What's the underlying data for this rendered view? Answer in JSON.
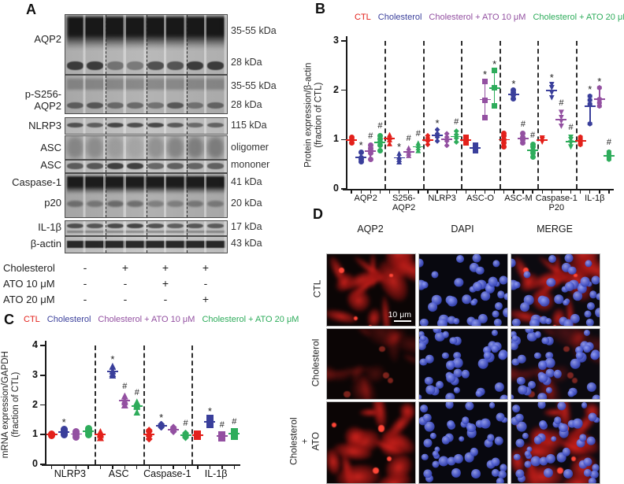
{
  "figure": {
    "panel_labels": {
      "a": "A",
      "b": "B",
      "c": "C",
      "d": "D"
    }
  },
  "colors": {
    "red": "#E3211B",
    "blue": "#3A3F9B",
    "purple": "#9350A1",
    "green": "#2EAC5B",
    "axis": "#1a1a1a"
  },
  "legend_items": [
    {
      "key": "red",
      "label": "CTL"
    },
    {
      "key": "blue",
      "label": "Cholesterol"
    },
    {
      "key": "purple",
      "label": "Cholesterol + ATO 10 μM"
    },
    {
      "key": "green",
      "label": "Cholesterol + ATO 20 μM"
    }
  ],
  "panel_a": {
    "blots": [
      {
        "left": [
          "AQP2"
        ],
        "right": [
          "35-55 kDa",
          "28 kDa"
        ]
      },
      {
        "left": [
          "p-S256-AQP2"
        ],
        "right": [
          "35-55 kDa",
          "28 kDa"
        ]
      },
      {
        "left": [
          "NLRP3"
        ],
        "right": [
          "115 kDa"
        ]
      },
      {
        "left": [
          "ASC"
        ],
        "right": [
          "oligomer"
        ]
      },
      {
        "left": [
          "ASC"
        ],
        "right": [
          "mononer"
        ]
      },
      {
        "left": [
          "Caspase-1",
          "p20"
        ],
        "right": [
          "41 kDa",
          "20 kDa"
        ]
      },
      {
        "left": [
          "IL-1β"
        ],
        "right": [
          "17 kDa"
        ]
      },
      {
        "left": [
          "β-actin"
        ],
        "right": [
          "43 kDa"
        ]
      }
    ],
    "treatments": [
      {
        "label": "Cholesterol",
        "values": [
          "-",
          "+",
          "+",
          "+"
        ]
      },
      {
        "label": "ATO 10 μM",
        "values": [
          "-",
          "-",
          "+",
          "-"
        ]
      },
      {
        "label": "ATO 20 μM",
        "values": [
          "-",
          "-",
          "-",
          "+"
        ]
      }
    ]
  },
  "chart_data": [
    {
      "id": "B",
      "type": "scatter",
      "ylabel": [
        "Protein expression/β-actin",
        "(fraction of CTL)"
      ],
      "ylim": [
        0,
        3
      ],
      "yticks": [
        0,
        1,
        2,
        3
      ],
      "grid": false,
      "legend_position": "top",
      "groups": [
        {
          "label": "AQP2",
          "marker": "circle",
          "series": [
            {
              "color": "red",
              "sig": "",
              "values": [
                0.93,
                1.0,
                1.05
              ]
            },
            {
              "color": "blue",
              "sig": "*",
              "values": [
                0.55,
                0.6,
                0.63,
                0.75
              ]
            },
            {
              "color": "purple",
              "sig": "#",
              "values": [
                0.6,
                0.72,
                0.78,
                0.82,
                0.88
              ]
            },
            {
              "color": "green",
              "sig": "#",
              "values": [
                0.78,
                0.88,
                0.95,
                1.02,
                1.08
              ]
            }
          ]
        },
        {
          "label": "S256-\nAQP2",
          "marker": "triangle",
          "series": [
            {
              "color": "red",
              "sig": "",
              "values": [
                0.92,
                1.0,
                1.05,
                1.1
              ]
            },
            {
              "color": "blue",
              "sig": "*",
              "values": [
                0.55,
                0.6,
                0.65,
                0.72
              ]
            },
            {
              "color": "purple",
              "sig": "#",
              "values": [
                0.68,
                0.73,
                0.78,
                0.83
              ]
            },
            {
              "color": "green",
              "sig": "#",
              "values": [
                0.78,
                0.83,
                0.88,
                0.93
              ]
            }
          ]
        },
        {
          "label": "NLRP3",
          "marker": "diamond",
          "series": [
            {
              "color": "red",
              "sig": "",
              "values": [
                0.9,
                0.97,
                1.03,
                1.08
              ]
            },
            {
              "color": "blue",
              "sig": "*",
              "values": [
                0.97,
                1.05,
                1.12,
                1.2
              ]
            },
            {
              "color": "purple",
              "sig": "",
              "values": [
                0.88,
                0.97,
                1.05,
                1.12
              ]
            },
            {
              "color": "green",
              "sig": "#",
              "values": [
                0.95,
                1.03,
                1.1,
                1.17
              ]
            }
          ]
        },
        {
          "label": "ASC-O",
          "marker": "square",
          "series": [
            {
              "color": "red",
              "sig": "",
              "values": [
                0.93,
                1.0,
                1.05
              ]
            },
            {
              "color": "blue",
              "sig": "",
              "values": [
                0.77,
                0.88
              ]
            },
            {
              "color": "purple",
              "sig": "*",
              "values": [
                1.45,
                1.8,
                2.18
              ]
            },
            {
              "color": "green",
              "sig": "*",
              "values": [
                1.68,
                2.05,
                2.4
              ]
            }
          ]
        },
        {
          "label": "ASC-M",
          "marker": "circle",
          "series": [
            {
              "color": "red",
              "sig": "",
              "values": [
                0.85,
                0.93,
                1.0,
                1.08,
                1.13
              ]
            },
            {
              "color": "blue",
              "sig": "*",
              "values": [
                1.83,
                1.9,
                1.95,
                2.0
              ]
            },
            {
              "color": "purple",
              "sig": "#",
              "values": [
                0.93,
                1.0,
                1.05,
                1.12
              ]
            },
            {
              "color": "green",
              "sig": "#",
              "values": [
                0.65,
                0.72,
                0.78,
                0.85,
                0.9
              ]
            }
          ]
        },
        {
          "label": "Caspase-1\nP20",
          "marker": "triangle-down",
          "series": [
            {
              "color": "red",
              "sig": "",
              "values": [
                0.95,
                1.0,
                1.03
              ]
            },
            {
              "color": "blue",
              "sig": "*",
              "values": [
                1.85,
                1.95,
                2.05,
                2.12
              ]
            },
            {
              "color": "purple",
              "sig": "#",
              "values": [
                1.27,
                1.37,
                1.45,
                1.55
              ]
            },
            {
              "color": "green",
              "sig": "#",
              "values": [
                0.85,
                0.93,
                1.0,
                1.05
              ]
            }
          ]
        },
        {
          "label": "IL-1β",
          "marker": "hexagon",
          "series": [
            {
              "color": "red",
              "sig": "",
              "values": [
                0.9,
                0.95,
                1.0,
                1.05
              ]
            },
            {
              "color": "blue",
              "sig": "*",
              "values": [
                1.32,
                1.72,
                1.8,
                1.88
              ]
            },
            {
              "color": "purple",
              "sig": "*",
              "values": [
                1.68,
                1.75,
                1.82,
                2.05
              ]
            },
            {
              "color": "green",
              "sig": "#",
              "values": [
                0.6,
                0.65,
                0.7,
                0.75
              ]
            }
          ]
        }
      ]
    },
    {
      "id": "C",
      "type": "scatter",
      "ylabel": [
        "mRNA  expression/GAPDH",
        "(fraction of CTL)"
      ],
      "ylim": [
        0,
        4
      ],
      "yticks": [
        0,
        1,
        2,
        3,
        4
      ],
      "grid": false,
      "legend_position": "top",
      "groups": [
        {
          "label": "NLRP3",
          "marker": "circle",
          "series": [
            {
              "color": "red",
              "sig": "",
              "values": [
                0.98,
                1.0,
                1.02
              ]
            },
            {
              "color": "blue",
              "sig": "*",
              "values": [
                1.0,
                1.05,
                1.12,
                1.18
              ]
            },
            {
              "color": "purple",
              "sig": "",
              "values": [
                0.92,
                1.0,
                1.05,
                1.1
              ]
            },
            {
              "color": "green",
              "sig": "",
              "values": [
                1.0,
                1.08,
                1.15,
                1.2
              ]
            }
          ]
        },
        {
          "label": "ASC",
          "marker": "triangle",
          "series": [
            {
              "color": "red",
              "sig": "",
              "values": [
                0.9,
                1.0,
                1.05,
                1.1
              ]
            },
            {
              "color": "blue",
              "sig": "*",
              "values": [
                3.0,
                3.05,
                3.15,
                3.3
              ]
            },
            {
              "color": "purple",
              "sig": "#",
              "values": [
                2.0,
                2.1,
                2.15,
                2.3
              ]
            },
            {
              "color": "green",
              "sig": "#",
              "values": [
                1.75,
                1.95,
                2.0,
                2.1
              ]
            }
          ]
        },
        {
          "label": "Caspase-1",
          "marker": "diamond",
          "series": [
            {
              "color": "red",
              "sig": "",
              "values": [
                0.85,
                0.95,
                1.0,
                1.1,
                1.15
              ]
            },
            {
              "color": "blue",
              "sig": "*",
              "values": [
                1.25,
                1.3,
                1.35
              ]
            },
            {
              "color": "purple",
              "sig": "",
              "values": [
                1.1,
                1.15,
                1.2,
                1.25
              ]
            },
            {
              "color": "green",
              "sig": "#",
              "values": [
                0.9,
                0.95,
                1.0,
                1.05
              ]
            }
          ]
        },
        {
          "label": "IL-1β",
          "marker": "square",
          "series": [
            {
              "color": "red",
              "sig": "",
              "values": [
                0.95,
                1.0,
                1.02
              ]
            },
            {
              "color": "blue",
              "sig": "*",
              "values": [
                1.35,
                1.4,
                1.45,
                1.55
              ]
            },
            {
              "color": "purple",
              "sig": "#",
              "values": [
                0.88,
                0.95,
                1.0
              ]
            },
            {
              "color": "green",
              "sig": "#",
              "values": [
                0.95,
                1.0,
                1.05,
                1.1
              ]
            }
          ]
        }
      ]
    }
  ],
  "panel_d": {
    "col_headers": [
      "AQP2",
      "DAPI",
      "MERGE"
    ],
    "row_labels": [
      [
        "CTL"
      ],
      [
        "Cholesterol"
      ],
      [
        "Cholesterol",
        "+",
        "ATO"
      ]
    ],
    "scale_bar": "10 μm"
  }
}
